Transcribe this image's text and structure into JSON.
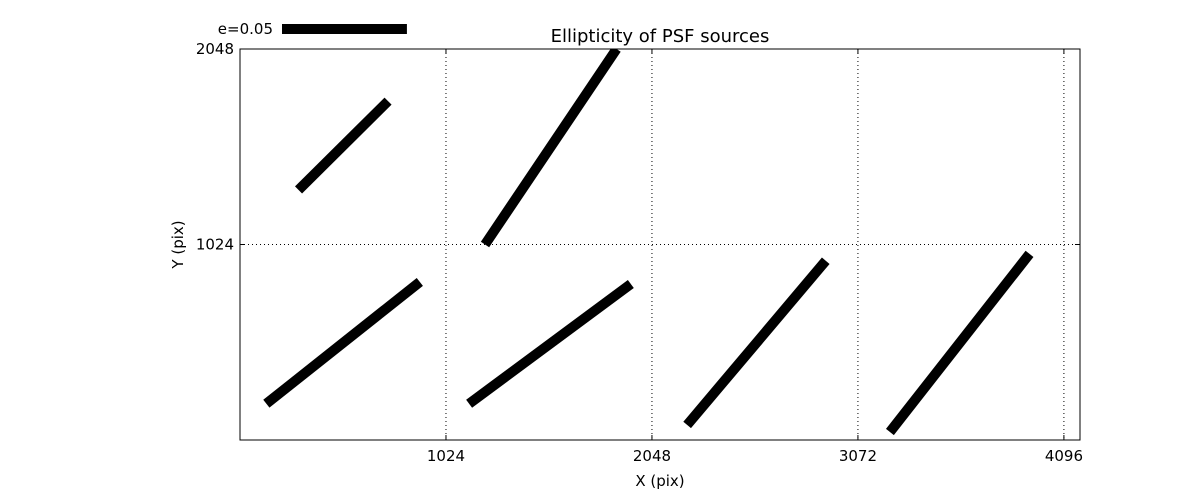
{
  "chart_data": {
    "type": "line",
    "title": "Ellipticity of PSF sources",
    "xlabel": "X (pix)",
    "ylabel": "Y (pix)",
    "xlim": [
      0,
      4176
    ],
    "ylim": [
      0,
      2048
    ],
    "x_ticks": [
      1024,
      2048,
      3072,
      4096
    ],
    "y_ticks": [
      1024,
      2048
    ],
    "x_tick_labels": [
      "1024",
      "2048",
      "3072",
      "4096"
    ],
    "y_tick_labels": [
      "1024",
      "2048"
    ],
    "grid": true,
    "scale_legend": {
      "label": "e=0.05",
      "position": "top-left",
      "length_x_units": 621
    },
    "segments": [
      {
        "x": [
          291,
          736
        ],
        "y": [
          1310,
          1775
        ]
      },
      {
        "x": [
          1218,
          1872
        ],
        "y": [
          1024,
          2048
        ]
      },
      {
        "x": [
          131,
          894
        ],
        "y": [
          190,
          828
        ]
      },
      {
        "x": [
          1139,
          1943
        ],
        "y": [
          190,
          817
        ]
      },
      {
        "x": [
          2223,
          2912
        ],
        "y": [
          79,
          939
        ]
      },
      {
        "x": [
          3231,
          3925
        ],
        "y": [
          42,
          975
        ]
      }
    ],
    "line_width": 10,
    "line_color": "#000000"
  }
}
